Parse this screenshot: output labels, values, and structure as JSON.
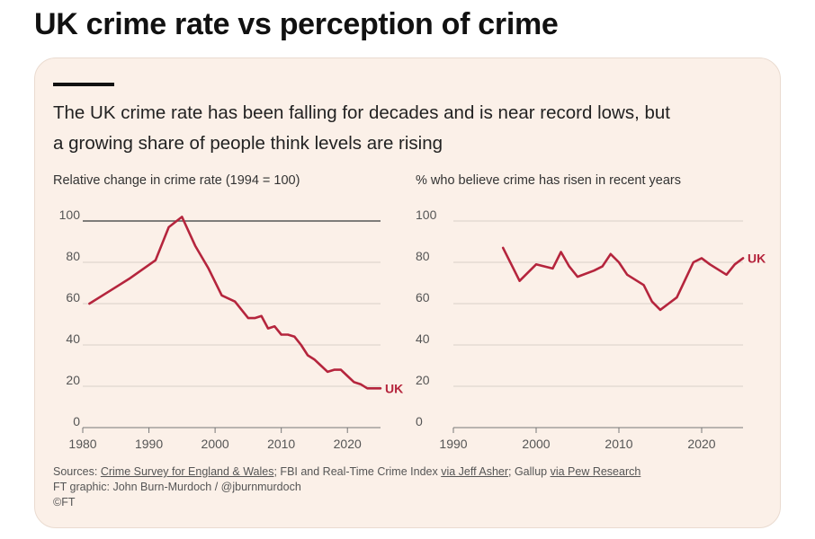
{
  "page_title": "UK crime rate vs perception of crime",
  "subtitle_line1": "The UK crime rate has been falling for decades and is near record lows, but",
  "subtitle_line2": "a growing share of people think levels are rising",
  "sources": {
    "prefix": "Sources: ",
    "link1": "Crime Survey for England & Wales",
    "mid1": "; FBI and Real-Time Crime Index ",
    "link2": "via Jeff Asher",
    "mid2": "; Gallup ",
    "link3": "via Pew Research",
    "line2": "FT graphic: John Burn-Murdoch / @jburnmurdoch",
    "line3": "©FT"
  },
  "colors": {
    "line": "#b5253d",
    "background": "#fbf0e8",
    "reference_line": "#555555",
    "grid": "#d9d0c8"
  },
  "chart_data": [
    {
      "type": "line",
      "title": "Relative change in crime rate (1994 = 100)",
      "xlim": [
        1980,
        2025
      ],
      "ylim": [
        0,
        100
      ],
      "xticks": [
        "1980",
        "1990",
        "2000",
        "2010",
        "2020"
      ],
      "yticks": [
        "0",
        "20",
        "40",
        "60",
        "80",
        "100"
      ],
      "reference_line_y": 100,
      "series": [
        {
          "name": "UK",
          "x": [
            1981,
            1983,
            1987,
            1991,
            1993,
            1995,
            1997,
            1999,
            2001,
            2003,
            2005,
            2006,
            2007,
            2008,
            2009,
            2010,
            2011,
            2012,
            2013,
            2014,
            2015,
            2016,
            2017,
            2018,
            2019,
            2020,
            2021,
            2022,
            2023,
            2024,
            2025
          ],
          "y": [
            60,
            64,
            72,
            81,
            97,
            102,
            88,
            77,
            64,
            61,
            53,
            53,
            54,
            48,
            49,
            45,
            45,
            44,
            40,
            35,
            33,
            30,
            27,
            28,
            28,
            25,
            22,
            21,
            19,
            19,
            19
          ]
        }
      ]
    },
    {
      "type": "line",
      "title": "% who believe crime has risen in recent years",
      "xlim": [
        1990,
        2025
      ],
      "ylim": [
        0,
        100
      ],
      "xticks": [
        "1990",
        "2000",
        "2010",
        "2020"
      ],
      "yticks": [
        "0",
        "20",
        "40",
        "60",
        "80",
        "100"
      ],
      "series": [
        {
          "name": "UK",
          "x": [
            1996,
            1998,
            2000,
            2002,
            2003,
            2004,
            2005,
            2007,
            2008,
            2009,
            2010,
            2011,
            2013,
            2014,
            2015,
            2016,
            2017,
            2019,
            2020,
            2021,
            2023,
            2024,
            2025
          ],
          "y": [
            87,
            71,
            79,
            77,
            85,
            78,
            73,
            76,
            78,
            84,
            80,
            74,
            69,
            61,
            57,
            60,
            63,
            80,
            82,
            79,
            74,
            79,
            82
          ]
        }
      ]
    }
  ]
}
